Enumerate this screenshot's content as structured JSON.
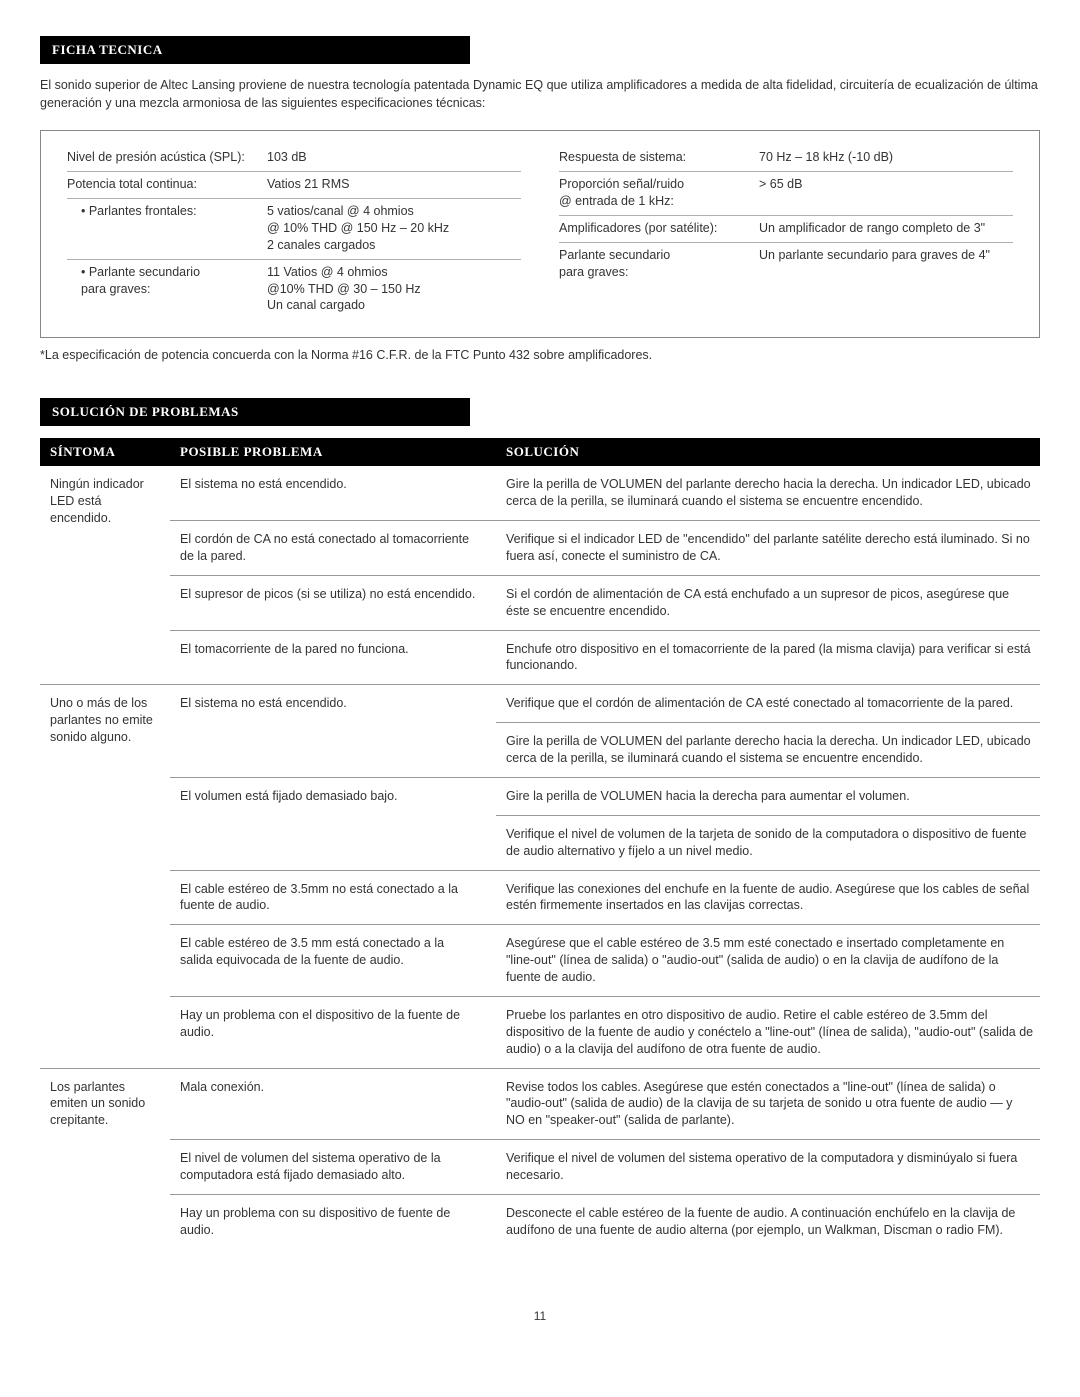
{
  "tech": {
    "heading": "FICHA TECNICA",
    "intro": "El sonido superior de Altec Lansing proviene de nuestra tecnología patentada Dynamic EQ que utiliza amplificadores a medida de alta fidelidad, circuitería de ecualización de última generación y una mezcla armoniosa de las siguientes especificaciones técnicas:",
    "left": [
      {
        "label": "Nivel de presión acústica (SPL):",
        "value": "103 dB"
      },
      {
        "label": "Potencia total continua:",
        "value": "Vatios 21 RMS"
      },
      {
        "label": "• Parlantes frontales:",
        "value": "5 vatios/canal @ 4 ohmios\n@ 10% THD @ 150 Hz – 20 kHz\n2 canales cargados",
        "indent": true
      },
      {
        "label": "• Parlante secundario\npara graves:",
        "value": "11 Vatios @ 4 ohmios\n@10% THD @ 30 – 150 Hz\nUn canal cargado",
        "indent": true
      }
    ],
    "right": [
      {
        "label": "Respuesta de sistema:",
        "value": "70 Hz – 18 kHz (-10 dB)"
      },
      {
        "label": "Proporción señal/ruido\n@ entrada de 1 kHz:",
        "value": "> 65 dB"
      },
      {
        "label": "Amplificadores (por satélite):",
        "value": "Un amplificador de rango completo de 3\""
      },
      {
        "label": "Parlante secundario\npara graves:",
        "value": "Un parlante secundario para graves de 4\""
      }
    ],
    "footnote": "*La especificación de potencia concuerda con la Norma #16 C.F.R. de la FTC Punto 432 sobre amplificadores."
  },
  "ts": {
    "heading": "SOLUCIÓN DE PROBLEMAS",
    "col1": "SÍNTOMA",
    "col2": "POSIBLE PROBLEMA",
    "col3": "SOLUCIÓN",
    "groups": [
      {
        "symptom": "Ningún indicador LED está encendido.",
        "pairs": [
          {
            "problem": "El sistema no está encendido.",
            "solutions": [
              "Gire la perilla de VOLUMEN del parlante derecho hacia la derecha. Un indicador LED, ubicado cerca de la perilla, se iluminará cuando el sistema se encuentre encendido."
            ]
          },
          {
            "problem": "El cordón de CA no está conectado al tomacorriente de la pared.",
            "solutions": [
              "Verifique si el indicador LED de \"encendido\" del parlante satélite derecho está iluminado. Si no fuera así, conecte el suministro de CA."
            ]
          },
          {
            "problem": "El supresor de picos (si se utiliza) no está encendido.",
            "solutions": [
              "Si el cordón de alimentación de CA está enchufado a un supresor de picos, asegúrese que éste se encuentre encendido."
            ]
          },
          {
            "problem": "El tomacorriente de la pared no funciona.",
            "solutions": [
              "Enchufe otro dispositivo en el tomacorriente de la pared (la misma clavija) para verificar si está funcionando."
            ]
          }
        ]
      },
      {
        "symptom": "Uno o más de los parlantes no emite sonido alguno.",
        "pairs": [
          {
            "problem": "El sistema no está encendido.",
            "solutions": [
              "Verifique que el cordón de alimentación de CA esté conectado al tomacorriente de la pared.",
              "Gire la perilla de VOLUMEN del parlante derecho hacia la derecha. Un indicador LED, ubicado cerca de la perilla, se iluminará cuando el sistema se encuentre encendido."
            ]
          },
          {
            "problem": "El volumen está fijado demasiado bajo.",
            "solutions": [
              "Gire la perilla de VOLUMEN hacia la derecha para aumentar el volumen.",
              "Verifique el nivel de volumen de la tarjeta de sonido de la computadora o dispositivo de fuente de audio alternativo y fíjelo a un nivel medio."
            ]
          },
          {
            "problem": "El cable estéreo de 3.5mm no está conectado a la fuente de audio.",
            "solutions": [
              "Verifique las conexiones del enchufe en la fuente de audio. Asegúrese que los cables de señal estén firmemente insertados en las clavijas correctas."
            ]
          },
          {
            "problem": "El cable estéreo de 3.5 mm está conectado a la salida equivocada de la fuente de audio.",
            "solutions": [
              "Asegúrese que el cable estéreo de 3.5 mm esté conectado e insertado completamente en \"line-out\" (línea de salida) o \"audio-out\" (salida de audio) o en la clavija de audífono de la fuente de audio."
            ]
          },
          {
            "problem": "Hay un problema con el dispositivo de la fuente de audio.",
            "solutions": [
              "Pruebe los parlantes en otro dispositivo de audio. Retire el cable estéreo de 3.5mm del dispositivo de la fuente de audio y conéctelo a \"line-out\" (línea de salida), \"audio-out\" (salida de audio) o a la clavija del audífono de otra fuente de audio."
            ]
          }
        ]
      },
      {
        "symptom": "Los parlantes emiten un sonido crepitante.",
        "pairs": [
          {
            "problem": "Mala conexión.",
            "solutions": [
              "Revise todos los cables. Asegúrese que estén conectados a \"line-out\" (línea de salida) o \"audio-out\" (salida de audio) de la clavija de su tarjeta de sonido u otra fuente de audio — y NO en \"speaker-out\" (salida de parlante)."
            ]
          },
          {
            "problem": "El nivel de volumen del sistema operativo de la computadora está fijado demasiado alto.",
            "solutions": [
              "Verifique el nivel de volumen del sistema operativo de la computadora y disminúyalo si fuera necesario."
            ]
          },
          {
            "problem": "Hay un problema con su dispositivo de fuente de audio.",
            "solutions": [
              "Desconecte el cable estéreo de la fuente de audio. A continuación enchúfelo en la clavija de audífono de una fuente de audio alterna (por ejemplo, un Walkman, Discman o radio FM)."
            ]
          }
        ]
      }
    ]
  },
  "page_number": "11"
}
